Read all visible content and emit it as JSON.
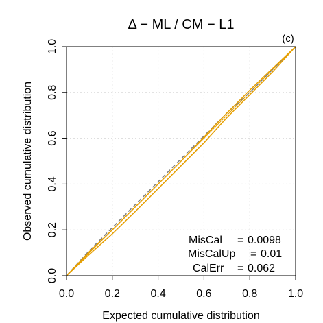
{
  "chart_data": {
    "type": "line",
    "title": "Δ − ML / CM − L1",
    "panel_label": "(c)",
    "xlabel": "Expected cumulative distribution",
    "ylabel": "Observed cumulative distribution",
    "xlim": [
      0,
      1
    ],
    "ylim": [
      0,
      1
    ],
    "xticks": [
      "0.0",
      "0.2",
      "0.4",
      "0.6",
      "0.8",
      "1.0"
    ],
    "yticks": [
      "0.0",
      "0.2",
      "0.4",
      "0.6",
      "0.8",
      "1.0"
    ],
    "grid": true,
    "reference_line": {
      "x": [
        0,
        1
      ],
      "y": [
        0,
        1
      ],
      "color": "#e69f00"
    },
    "series": [
      {
        "style": "dashed",
        "color": "#7f7f7f",
        "x": [
          0,
          0.1,
          0.2,
          0.3,
          0.4,
          0.5,
          0.6,
          0.7,
          0.8,
          0.9,
          1.0
        ],
        "y": [
          0,
          0.11,
          0.21,
          0.31,
          0.41,
          0.51,
          0.61,
          0.71,
          0.8,
          0.9,
          1.0
        ]
      },
      {
        "style": "solid",
        "color": "#e69f00",
        "x": [
          0,
          0.1,
          0.2,
          0.3,
          0.4,
          0.5,
          0.6,
          0.7,
          0.8,
          0.9,
          1.0
        ],
        "y": [
          0,
          0.105,
          0.2,
          0.3,
          0.4,
          0.5,
          0.605,
          0.71,
          0.81,
          0.905,
          1.0
        ]
      },
      {
        "style": "solid",
        "color": "#e69f00",
        "x": [
          0,
          0.1,
          0.2,
          0.3,
          0.4,
          0.5,
          0.6,
          0.7,
          0.8,
          0.9,
          1.0
        ],
        "y": [
          0,
          0.093,
          0.183,
          0.28,
          0.38,
          0.48,
          0.58,
          0.69,
          0.79,
          0.89,
          1.0
        ]
      }
    ],
    "stats": [
      {
        "label": "MisCal",
        "value": "0.0098"
      },
      {
        "label": "MisCalUp",
        "value": "0.01"
      },
      {
        "label": "CalErr",
        "value": "0.062"
      }
    ]
  }
}
